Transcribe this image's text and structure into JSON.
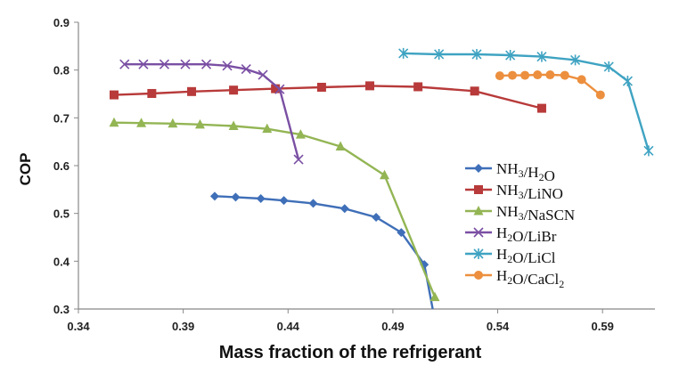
{
  "chart_data": {
    "type": "line",
    "title": "",
    "xlabel": "Mass fraction of the refrigerant",
    "ylabel": "COP",
    "xlim": [
      0.34,
      0.615
    ],
    "ylim": [
      0.3,
      0.9
    ],
    "xticks": [
      0.34,
      0.39,
      0.44,
      0.49,
      0.54,
      0.59
    ],
    "xtick_labels": [
      "0.34",
      "0.39",
      "0.44",
      "0.49",
      "0.54",
      "0.59"
    ],
    "yticks": [
      0.3,
      0.4,
      0.5,
      0.6,
      0.7,
      0.8,
      0.9
    ],
    "ytick_labels": [
      "0.3",
      "0.4",
      "0.5",
      "0.6",
      "0.7",
      "0.8",
      "0.9"
    ],
    "grid": false,
    "legend_position": "right",
    "series": [
      {
        "name": "NH3/H2O",
        "label_parts": [
          {
            "t": "NH"
          },
          {
            "t": "3",
            "sub": true
          },
          {
            "t": "/H"
          },
          {
            "t": "2",
            "sub": true
          },
          {
            "t": "O"
          }
        ],
        "color": "#3f6fb8",
        "marker": "diamond",
        "x": [
          0.405,
          0.415,
          0.427,
          0.438,
          0.452,
          0.467,
          0.482,
          0.494,
          0.505
        ],
        "y": [
          0.536,
          0.534,
          0.531,
          0.527,
          0.521,
          0.51,
          0.492,
          0.46,
          0.393
        ],
        "tail": [
          [
            0.509,
            0.3
          ]
        ]
      },
      {
        "name": "NH3/LiNO",
        "label_parts": [
          {
            "t": "NH"
          },
          {
            "t": "3",
            "sub": true
          },
          {
            "t": "/LiNO"
          }
        ],
        "color": "#b83a3a",
        "marker": "square",
        "x": [
          0.357,
          0.375,
          0.394,
          0.414,
          0.434,
          0.456,
          0.479,
          0.502,
          0.529,
          0.561
        ],
        "y": [
          0.748,
          0.751,
          0.755,
          0.758,
          0.761,
          0.764,
          0.767,
          0.765,
          0.756,
          0.72
        ],
        "tail": []
      },
      {
        "name": "NH3/NaSCN",
        "label_parts": [
          {
            "t": "NH"
          },
          {
            "t": "3",
            "sub": true
          },
          {
            "t": "/NaSCN"
          }
        ],
        "color": "#93b554",
        "marker": "triangle",
        "x": [
          0.357,
          0.37,
          0.385,
          0.398,
          0.414,
          0.43,
          0.446,
          0.465,
          0.486,
          0.51
        ],
        "y": [
          0.69,
          0.689,
          0.688,
          0.686,
          0.683,
          0.677,
          0.665,
          0.64,
          0.58,
          0.325
        ],
        "tail": []
      },
      {
        "name": "H2O/LiBr",
        "label_parts": [
          {
            "t": "H"
          },
          {
            "t": "2",
            "sub": true
          },
          {
            "t": "O/LiBr"
          }
        ],
        "color": "#7a4fa3",
        "marker": "x",
        "x": [
          0.362,
          0.371,
          0.381,
          0.391,
          0.401,
          0.411,
          0.42,
          0.428,
          0.436,
          0.445
        ],
        "y": [
          0.812,
          0.812,
          0.812,
          0.812,
          0.812,
          0.809,
          0.802,
          0.79,
          0.76,
          0.613
        ],
        "tail": []
      },
      {
        "name": "H2O/LiCl",
        "label_parts": [
          {
            "t": "H"
          },
          {
            "t": "2",
            "sub": true
          },
          {
            "t": "O/LiCl"
          }
        ],
        "color": "#3fa3c2",
        "marker": "star",
        "x": [
          0.495,
          0.512,
          0.53,
          0.546,
          0.561,
          0.577,
          0.593,
          0.602,
          0.612
        ],
        "y": [
          0.835,
          0.833,
          0.833,
          0.831,
          0.828,
          0.821,
          0.807,
          0.777,
          0.631
        ],
        "tail": []
      },
      {
        "name": "H2O/CaCl2",
        "label_parts": [
          {
            "t": "H"
          },
          {
            "t": "2",
            "sub": true
          },
          {
            "t": "O/CaCl"
          },
          {
            "t": "2",
            "sub": true
          }
        ],
        "color": "#ec8f3e",
        "marker": "circle",
        "x": [
          0.541,
          0.547,
          0.553,
          0.559,
          0.565,
          0.572,
          0.58,
          0.589
        ],
        "y": [
          0.788,
          0.789,
          0.789,
          0.79,
          0.79,
          0.789,
          0.78,
          0.748
        ],
        "tail": []
      }
    ]
  }
}
